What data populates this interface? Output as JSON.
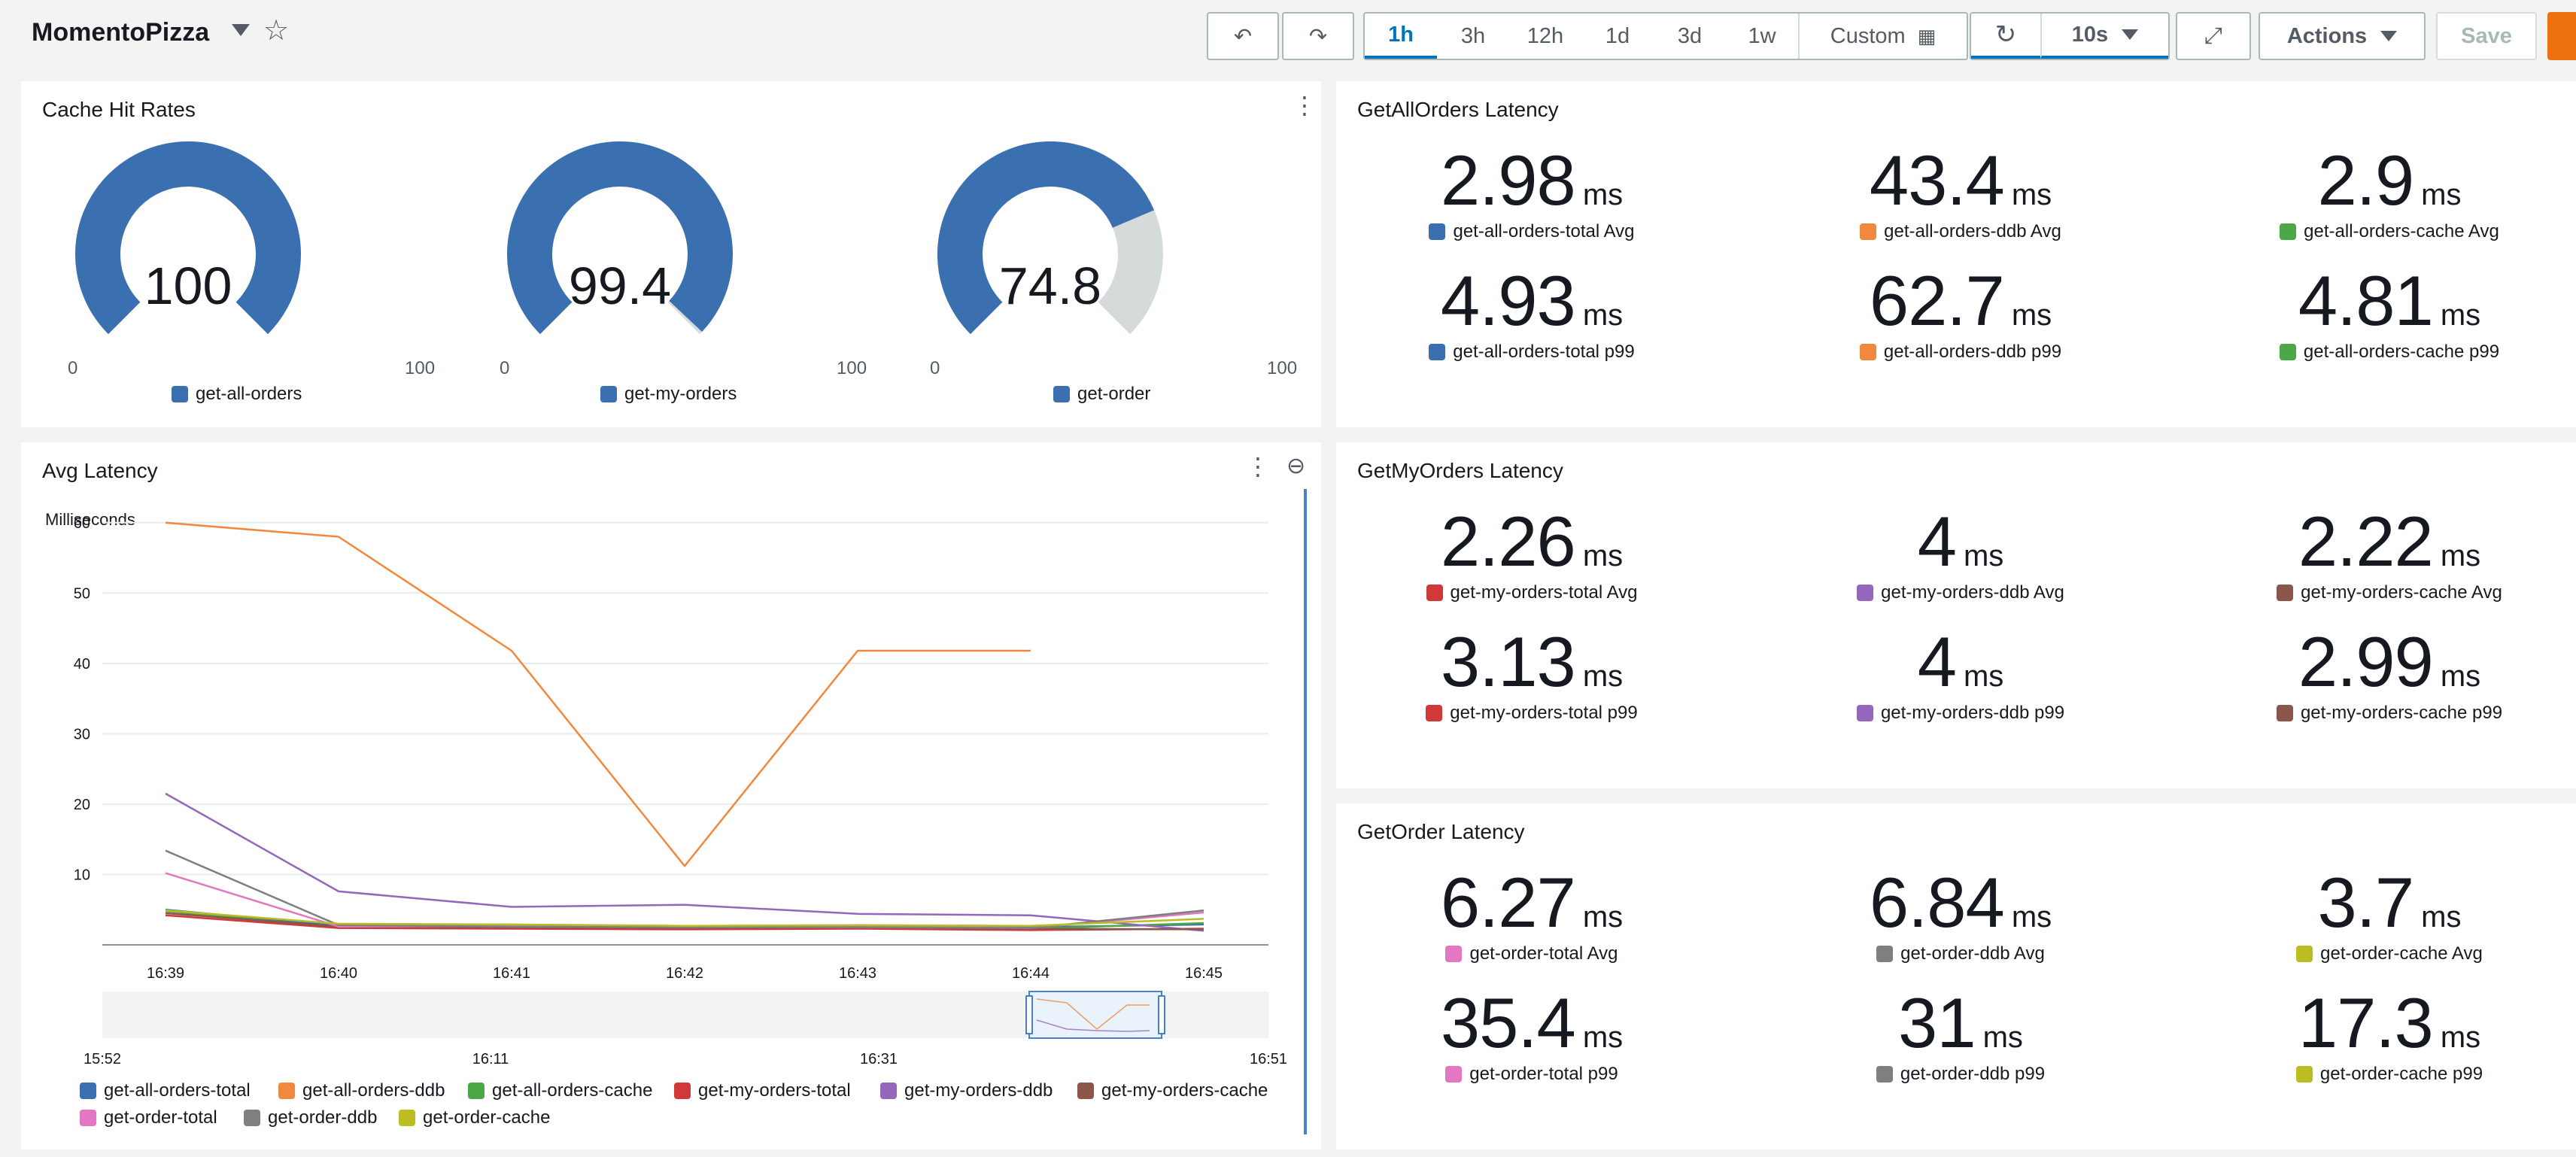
{
  "toolbar": {
    "dashboard_name": "MomentoPizza",
    "time_ranges": [
      "1h",
      "3h",
      "12h",
      "1d",
      "3d",
      "1w"
    ],
    "selected_range": "1h",
    "custom_label": "Custom",
    "refresh_interval": "10s",
    "actions_label": "Actions",
    "save_label": "Save"
  },
  "cache_hit_rates": {
    "title": "Cache Hit Rates",
    "gauges": [
      {
        "name": "get-all-orders",
        "value": 100,
        "value_label": "100",
        "min_label": "0",
        "max_label": "100",
        "color": "#3a6fb0"
      },
      {
        "name": "get-my-orders",
        "value": 99.4,
        "value_label": "99.4",
        "min_label": "0",
        "max_label": "100",
        "color": "#3a6fb0"
      },
      {
        "name": "get-order",
        "value": 74.8,
        "value_label": "74.8",
        "min_label": "0",
        "max_label": "100",
        "color": "#3a6fb0"
      }
    ],
    "track_color": "#d5dbdb"
  },
  "latency_panels": [
    {
      "title": "GetAllOrders Latency",
      "metrics": [
        {
          "value": "2.98",
          "unit": "ms",
          "label": "get-all-orders-total Avg",
          "color": "#3a6fb0"
        },
        {
          "value": "43.4",
          "unit": "ms",
          "label": "get-all-orders-ddb Avg",
          "color": "#f0883e"
        },
        {
          "value": "2.9",
          "unit": "ms",
          "label": "get-all-orders-cache Avg",
          "color": "#4ca847"
        },
        {
          "value": "4.93",
          "unit": "ms",
          "label": "get-all-orders-total p99",
          "color": "#3a6fb0"
        },
        {
          "value": "62.7",
          "unit": "ms",
          "label": "get-all-orders-ddb p99",
          "color": "#f0883e"
        },
        {
          "value": "4.81",
          "unit": "ms",
          "label": "get-all-orders-cache p99",
          "color": "#4ca847"
        }
      ]
    },
    {
      "title": "GetMyOrders Latency",
      "metrics": [
        {
          "value": "2.26",
          "unit": "ms",
          "label": "get-my-orders-total Avg",
          "color": "#d13838"
        },
        {
          "value": "4",
          "unit": "ms",
          "label": "get-my-orders-ddb Avg",
          "color": "#9467bd"
        },
        {
          "value": "2.22",
          "unit": "ms",
          "label": "get-my-orders-cache Avg",
          "color": "#8c564b"
        },
        {
          "value": "3.13",
          "unit": "ms",
          "label": "get-my-orders-total p99",
          "color": "#d13838"
        },
        {
          "value": "4",
          "unit": "ms",
          "label": "get-my-orders-ddb p99",
          "color": "#9467bd"
        },
        {
          "value": "2.99",
          "unit": "ms",
          "label": "get-my-orders-cache p99",
          "color": "#8c564b"
        }
      ]
    },
    {
      "title": "GetOrder Latency",
      "metrics": [
        {
          "value": "6.27",
          "unit": "ms",
          "label": "get-order-total Avg",
          "color": "#e377c2"
        },
        {
          "value": "6.84",
          "unit": "ms",
          "label": "get-order-ddb Avg",
          "color": "#7f7f7f"
        },
        {
          "value": "3.7",
          "unit": "ms",
          "label": "get-order-cache Avg",
          "color": "#bcbd22"
        },
        {
          "value": "35.4",
          "unit": "ms",
          "label": "get-order-total p99",
          "color": "#e377c2"
        },
        {
          "value": "31",
          "unit": "ms",
          "label": "get-order-ddb p99",
          "color": "#7f7f7f"
        },
        {
          "value": "17.3",
          "unit": "ms",
          "label": "get-order-cache p99",
          "color": "#bcbd22"
        }
      ]
    }
  ],
  "avg_latency": {
    "title": "Avg Latency",
    "minimap_ticks": [
      "15:52",
      "16:11",
      "16:31",
      "16:51"
    ]
  },
  "chart_data": {
    "type": "line",
    "title": "Avg Latency",
    "ylabel": "Milliseconds",
    "x": [
      "16:39",
      "16:40",
      "16:41",
      "16:42",
      "16:43",
      "16:44",
      "16:45"
    ],
    "ylim": [
      0,
      65
    ],
    "yticks": [
      10,
      20,
      30,
      40,
      50,
      60
    ],
    "grid": true,
    "legend_position": "bottom",
    "series": [
      {
        "name": "get-all-orders-total",
        "color": "#3a6fb0",
        "values": [
          5.0,
          2.7,
          2.8,
          2.6,
          2.7,
          2.5,
          2.9
        ]
      },
      {
        "name": "get-all-orders-ddb",
        "color": "#f0883e",
        "values": [
          60.0,
          58.0,
          41.8,
          11.2,
          41.8,
          41.8,
          null
        ]
      },
      {
        "name": "get-all-orders-cache",
        "color": "#4ca847",
        "values": [
          4.8,
          2.5,
          2.6,
          2.4,
          2.5,
          2.3,
          3.1
        ]
      },
      {
        "name": "get-my-orders-total",
        "color": "#d13838",
        "values": [
          4.2,
          2.4,
          2.3,
          2.2,
          2.3,
          2.1,
          2.3
        ]
      },
      {
        "name": "get-my-orders-ddb",
        "color": "#9467bd",
        "values": [
          21.5,
          7.6,
          5.4,
          5.7,
          4.4,
          4.2,
          2.0
        ]
      },
      {
        "name": "get-my-orders-cache",
        "color": "#8c564b",
        "values": [
          4.5,
          2.6,
          2.5,
          2.4,
          2.5,
          2.3,
          2.2
        ]
      },
      {
        "name": "get-order-total",
        "color": "#e377c2",
        "values": [
          10.2,
          2.6,
          2.7,
          2.5,
          2.7,
          2.4,
          4.6
        ]
      },
      {
        "name": "get-order-ddb",
        "color": "#7f7f7f",
        "values": [
          13.4,
          2.8,
          2.6,
          2.5,
          2.5,
          2.4,
          4.9
        ]
      },
      {
        "name": "get-order-cache",
        "color": "#bcbd22",
        "values": [
          4.9,
          3.0,
          2.9,
          2.7,
          2.8,
          2.7,
          3.7
        ]
      }
    ]
  }
}
